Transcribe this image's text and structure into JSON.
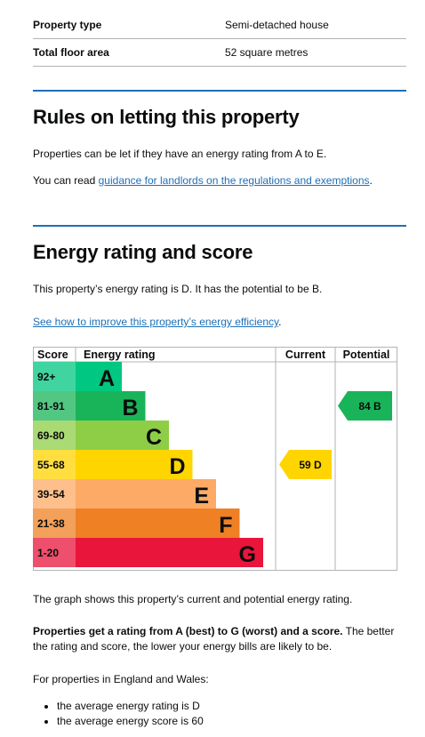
{
  "summary": {
    "rows": [
      {
        "label": "Property type",
        "value": "Semi-detached house"
      },
      {
        "label": "Total floor area",
        "value": "52 square metres"
      }
    ]
  },
  "rules": {
    "heading": "Rules on letting this property",
    "para1": "Properties can be let if they have an energy rating from A to E.",
    "para2_prefix": "You can read ",
    "para2_link": "guidance for landlords on the regulations and exemptions",
    "para2_suffix": "."
  },
  "energy": {
    "heading": "Energy rating and score",
    "intro": "This property’s energy rating is D. It has the potential to be B.",
    "improve_link": "See how to improve this property’s energy efficiency",
    "improve_suffix": ".",
    "chart": {
      "headers": {
        "score": "Score",
        "rating": "Energy rating",
        "current": "Current",
        "potential": "Potential"
      },
      "bands": [
        {
          "score": "92+",
          "letter": "A",
          "color": "#00c781"
        },
        {
          "score": "81-91",
          "letter": "B",
          "color": "#19b459"
        },
        {
          "score": "69-80",
          "letter": "C",
          "color": "#8dce46"
        },
        {
          "score": "55-68",
          "letter": "D",
          "color": "#ffd500"
        },
        {
          "score": "39-54",
          "letter": "E",
          "color": "#fcaa65"
        },
        {
          "score": "21-38",
          "letter": "F",
          "color": "#ef8023"
        },
        {
          "score": "1-20",
          "letter": "G",
          "color": "#e9153b"
        }
      ],
      "current": {
        "label": "59 D",
        "band": "D",
        "color": "#ffd500"
      },
      "potential": {
        "label": "84 B",
        "band": "B",
        "color": "#19b459"
      }
    },
    "graph_note": "The graph shows this property’s current and potential energy rating.",
    "bold_lead": "Properties get a rating from A (best) to G (worst) and a score.",
    "bold_rest": " The better the rating and score, the lower your energy bills are likely to be.",
    "averages_intro": "For properties in England and Wales:",
    "averages": [
      "the average energy rating is D",
      "the average energy score is 60"
    ]
  }
}
